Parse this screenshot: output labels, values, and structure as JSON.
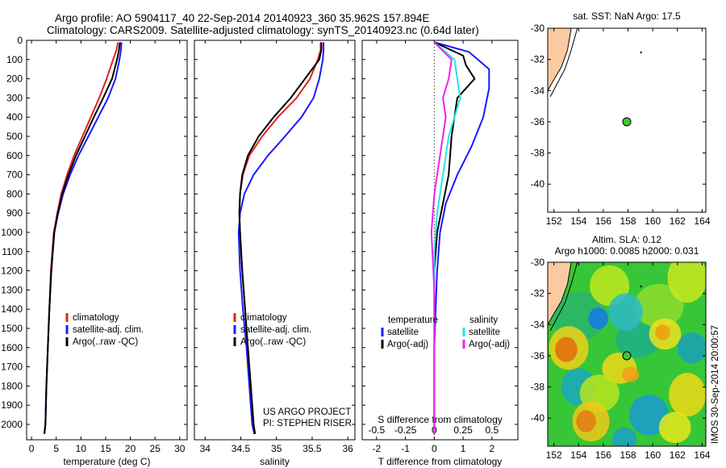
{
  "header": {
    "title_line1": "Argo profile: AO 5904117_40 22-Sep-2014 20140923_360 35.962S 157.894E",
    "title_line2": "Climatology: CARS2009. Satellite-adjusted climatology: synTS_20140923.nc (0.64d later)"
  },
  "side_text": "IMOS 30-Sep-2014 20:00:57",
  "colors": {
    "climatology": "#dd2222",
    "satellite": "#1a1aff",
    "argo": "#000000",
    "satellite_diff": "#22e6e6",
    "argo_diff": "#ee22ee",
    "land": "#fccaa0",
    "float": "#3fc832"
  },
  "chart_data": [
    {
      "type": "line",
      "id": "temperature",
      "xlabel": "temperature (deg C)",
      "ylabel": "",
      "xlim": [
        -1,
        31.5
      ],
      "ylim": [
        2080,
        0
      ],
      "xticks": [
        0,
        5,
        10,
        15,
        20,
        25,
        30
      ],
      "yticks": [
        0,
        100,
        200,
        300,
        400,
        500,
        600,
        700,
        800,
        900,
        1000,
        1100,
        1200,
        1300,
        1400,
        1500,
        1600,
        1700,
        1800,
        1900,
        2000
      ],
      "legend": [
        "climatology",
        "satellite-adj. clim.",
        "Argo(..raw -QC)"
      ],
      "series": [
        {
          "name": "climatology",
          "color": "#dd2222",
          "x": [
            17.5,
            17.2,
            16.5,
            15.2,
            13.7,
            12.0,
            10.3,
            8.6,
            7.2,
            6.0,
            5.2,
            4.5,
            3.9,
            3.6,
            3.3,
            3.0,
            2.8,
            2.6
          ],
          "y": [
            10,
            50,
            100,
            200,
            300,
            400,
            500,
            600,
            700,
            800,
            900,
            1000,
            1200,
            1400,
            1600,
            1800,
            2000,
            2050
          ]
        },
        {
          "name": "satellite-adj. clim.",
          "color": "#1a1aff",
          "x": [
            18.2,
            18.1,
            17.8,
            17.0,
            15.5,
            13.5,
            11.5,
            9.5,
            7.8,
            6.4,
            5.4,
            4.6,
            4.0,
            3.6,
            3.3,
            3.0,
            2.8,
            2.6
          ],
          "y": [
            10,
            50,
            100,
            200,
            300,
            400,
            500,
            600,
            700,
            800,
            900,
            1000,
            1200,
            1400,
            1600,
            1800,
            2000,
            2050
          ]
        },
        {
          "name": "Argo(..raw -QC)",
          "color": "#000000",
          "x": [
            17.9,
            17.7,
            17.3,
            16.3,
            14.5,
            12.6,
            10.8,
            9.0,
            7.5,
            6.2,
            5.3,
            4.6,
            4.0,
            3.6,
            3.3,
            3.0,
            2.8,
            2.6
          ],
          "y": [
            10,
            50,
            100,
            200,
            300,
            400,
            500,
            600,
            700,
            800,
            900,
            1000,
            1200,
            1400,
            1600,
            1800,
            2000,
            2050
          ]
        }
      ]
    },
    {
      "type": "line",
      "id": "salinity",
      "xlabel": "salinity",
      "ylabel": "",
      "xlim": [
        33.85,
        36.1
      ],
      "ylim": [
        2080,
        0
      ],
      "xticks": [
        34,
        34.5,
        35,
        35.5,
        36
      ],
      "legend": [
        "climatology",
        "satellite-adj. clim.",
        "Argo(..raw -QC)"
      ],
      "annotation": [
        "US ARGO PROJECT",
        "PI: STEPHEN RISER"
      ],
      "series": [
        {
          "name": "climatology",
          "color": "#dd2222",
          "x": [
            35.62,
            35.62,
            35.58,
            35.47,
            35.28,
            35.02,
            34.8,
            34.62,
            34.53,
            34.49,
            34.48,
            34.49,
            34.52,
            34.56,
            34.6,
            34.64,
            34.68,
            34.7
          ],
          "y": [
            10,
            50,
            100,
            200,
            300,
            400,
            500,
            600,
            700,
            800,
            900,
            1000,
            1200,
            1400,
            1600,
            1800,
            2000,
            2050
          ]
        },
        {
          "name": "satellite-adj. clim.",
          "color": "#1a1aff",
          "x": [
            35.66,
            35.66,
            35.65,
            35.6,
            35.52,
            35.35,
            35.12,
            34.88,
            34.68,
            34.55,
            34.49,
            34.47,
            34.49,
            34.53,
            34.58,
            34.62,
            34.66,
            34.69
          ],
          "y": [
            10,
            50,
            100,
            200,
            300,
            400,
            500,
            600,
            700,
            800,
            900,
            1000,
            1200,
            1400,
            1600,
            1800,
            2000,
            2050
          ]
        },
        {
          "name": "Argo(..raw -QC)",
          "color": "#000000",
          "x": [
            35.63,
            35.63,
            35.6,
            35.4,
            35.2,
            34.96,
            34.75,
            34.6,
            34.52,
            34.49,
            34.48,
            34.49,
            34.52,
            34.56,
            34.6,
            34.64,
            34.68,
            34.7
          ],
          "y": [
            10,
            50,
            100,
            200,
            300,
            400,
            500,
            600,
            700,
            800,
            900,
            1000,
            1200,
            1400,
            1600,
            1800,
            2000,
            2050
          ]
        }
      ]
    },
    {
      "type": "line",
      "id": "difference",
      "xlabel": "T difference from climatology",
      "xlabel_top": "S difference from climatology",
      "xlim": [
        -2.5,
        2.9
      ],
      "ylim": [
        2080,
        0
      ],
      "xticks": [
        -2,
        -1,
        0,
        1,
        2
      ],
      "sticks": [
        {
          "pos": -2,
          "label": "-0.5"
        },
        {
          "pos": -1,
          "label": "-0.25"
        },
        {
          "pos": 0,
          "label": "0"
        },
        {
          "pos": 1,
          "label": "0.25"
        },
        {
          "pos": 2,
          "label": "0.5"
        }
      ],
      "legend_temperature": [
        "temperature",
        "satellite",
        "Argo(-adj)"
      ],
      "legend_salinity": [
        "salinity",
        "satellite",
        "Argo(-adj)"
      ],
      "series": [
        {
          "name": "satellite",
          "color": "#1a1aff",
          "x": [
            0,
            1.2,
            1.9,
            1.9,
            1.7,
            1.3,
            0.8,
            0.4,
            0.2,
            0.1,
            0.05,
            0,
            0,
            0,
            0
          ],
          "y": [
            10,
            60,
            150,
            250,
            400,
            550,
            700,
            850,
            1000,
            1200,
            1400,
            1600,
            1800,
            2000,
            2050
          ]
        },
        {
          "name": "Argo(-adj)",
          "color": "#000000",
          "x": [
            0,
            1.0,
            1.1,
            1.4,
            0.8,
            0.6,
            0.5,
            0.3,
            0.1,
            0,
            0,
            0,
            0,
            0,
            0
          ],
          "y": [
            10,
            80,
            130,
            200,
            300,
            500,
            700,
            850,
            1000,
            1200,
            1400,
            1600,
            1800,
            2000,
            2050
          ]
        },
        {
          "name": "satellite",
          "color": "#22e6e6",
          "x": [
            0,
            0.7,
            0.8,
            0.9,
            0.7,
            0.5,
            0.3,
            0.1,
            0,
            0,
            0,
            0,
            0,
            0
          ],
          "y": [
            10,
            100,
            200,
            300,
            400,
            500,
            700,
            900,
            1100,
            1300,
            1500,
            1700,
            1900,
            2050
          ]
        },
        {
          "name": "Argo(-adj)",
          "color": "#ee22ee",
          "x": [
            0,
            0.6,
            0.5,
            0.3,
            0.4,
            0.2,
            0,
            -0.1,
            0,
            0,
            0
          ],
          "y": [
            10,
            100,
            200,
            300,
            400,
            600,
            800,
            1000,
            1300,
            1600,
            2050
          ]
        }
      ]
    },
    {
      "type": "map",
      "id": "sst_map",
      "title": "sat. SST: NaN Argo: 17.5",
      "xlim": [
        151.5,
        164.3
      ],
      "ylim": [
        -41.8,
        -30
      ],
      "xticks": [
        152,
        154,
        156,
        158,
        160,
        162,
        164
      ],
      "yticks": [
        -30,
        -32,
        -34,
        -36,
        -38,
        -40
      ],
      "float": {
        "lon": 157.9,
        "lat": -36.0
      }
    },
    {
      "type": "heatmap",
      "id": "sla_map",
      "title_line1": "Altim. SLA: 0.12",
      "title_line2": "Argo h1000: 0.0085 h2000: 0.031",
      "xlim": [
        151.5,
        164.3
      ],
      "ylim": [
        -41.8,
        -30
      ],
      "xticks": [
        152,
        154,
        156,
        158,
        160,
        162,
        164
      ],
      "yticks": [
        -30,
        -32,
        -34,
        -36,
        -38,
        -40
      ],
      "float": {
        "lon": 157.9,
        "lat": -36.0
      }
    }
  ]
}
